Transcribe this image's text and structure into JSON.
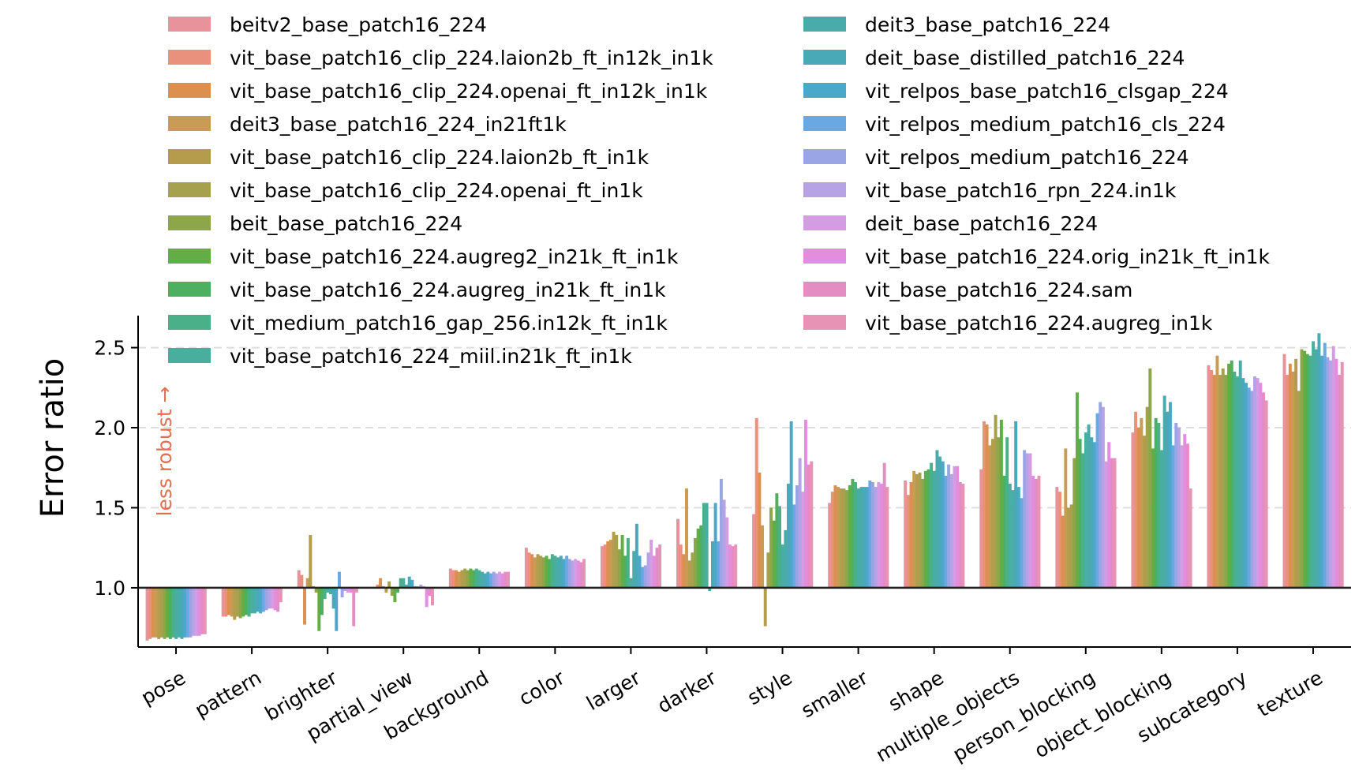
{
  "chart_data": {
    "type": "bar",
    "title": "",
    "xlabel": "",
    "ylabel": "Error ratio",
    "ylim": [
      0.63,
      2.7
    ],
    "yticks": [
      "1.0",
      "1.5",
      "2.0",
      "2.5"
    ],
    "grid": "horizontal dashed at 1.5, 2.0, 2.5",
    "reference_line": 1.0,
    "annotation": "less robust →",
    "legend_position": "top",
    "categories": [
      "pose",
      "pattern",
      "brighter",
      "partial_view",
      "background",
      "color",
      "larger",
      "darker",
      "style",
      "smaller",
      "shape",
      "multiple_objects",
      "person_blocking",
      "object_blocking",
      "subcategory",
      "texture"
    ],
    "series": [
      {
        "name": "beitv2_base_patch16_224",
        "color": "#e8939b",
        "values": [
          0.67,
          0.82,
          1.11,
          1.0,
          1.12,
          1.25,
          1.26,
          1.43,
          1.46,
          1.53,
          1.67,
          1.74,
          1.63,
          1.97,
          2.39,
          2.46
        ]
      },
      {
        "name": "vit_base_patch16_clip_224.laion2b_ft_in12k_in1k",
        "color": "#e9917d",
        "values": [
          0.68,
          0.82,
          1.08,
          1.02,
          1.11,
          1.22,
          1.27,
          1.27,
          2.06,
          1.6,
          1.58,
          2.04,
          1.6,
          2.1,
          2.36,
          2.33
        ]
      },
      {
        "name": "vit_base_patch16_clip_224.openai_ft_in12k_in1k",
        "color": "#dc8f4f",
        "values": [
          0.69,
          0.83,
          0.77,
          1.06,
          1.11,
          1.21,
          1.29,
          1.21,
          1.72,
          1.64,
          1.66,
          2.02,
          1.45,
          2.0,
          2.33,
          2.4
        ]
      },
      {
        "name": "deit3_base_patch16_224_in21ft1k",
        "color": "#c99b54",
        "values": [
          0.69,
          0.82,
          1.06,
          1.01,
          1.1,
          1.19,
          1.3,
          1.62,
          1.39,
          1.63,
          1.73,
          1.89,
          1.87,
          2.06,
          2.45,
          2.35
        ]
      },
      {
        "name": "vit_base_patch16_clip_224.laion2b_ft_in1k",
        "color": "#b49c4c",
        "values": [
          0.68,
          0.8,
          1.33,
          0.97,
          1.11,
          1.21,
          1.35,
          1.17,
          0.76,
          1.62,
          1.71,
          1.93,
          1.5,
          1.95,
          2.33,
          2.43
        ]
      },
      {
        "name": "vit_base_patch16_clip_224.openai_ft_in1k",
        "color": "#a6a14e",
        "values": [
          0.69,
          0.82,
          1.01,
          1.04,
          1.12,
          1.2,
          1.33,
          1.22,
          1.22,
          1.62,
          1.72,
          2.08,
          1.52,
          2.13,
          2.37,
          2.23
        ]
      },
      {
        "name": "beit_base_patch16_224",
        "color": "#8da649",
        "values": [
          0.68,
          0.81,
          0.97,
          0.95,
          1.11,
          1.19,
          1.24,
          1.31,
          1.5,
          1.61,
          1.68,
          1.94,
          1.81,
          2.37,
          2.33,
          2.49
        ]
      },
      {
        "name": "vit_base_patch16_224.augreg2_in21k_ft_in1k",
        "color": "#62ad44",
        "values": [
          0.69,
          0.82,
          0.73,
          0.91,
          1.12,
          1.2,
          1.33,
          1.37,
          1.42,
          1.64,
          1.73,
          2.05,
          2.22,
          1.87,
          2.4,
          2.48
        ]
      },
      {
        "name": "vit_base_patch16_224.augreg_in21k_ft_in1k",
        "color": "#4cb060",
        "values": [
          0.68,
          0.83,
          0.83,
          0.97,
          1.11,
          1.18,
          1.2,
          1.39,
          1.59,
          1.68,
          1.74,
          1.7,
          1.93,
          2.06,
          2.42,
          2.46
        ]
      },
      {
        "name": "vit_medium_patch16_gap_256.in12k_ft_in1k",
        "color": "#4ab08a",
        "values": [
          0.69,
          0.82,
          0.93,
          1.06,
          1.12,
          1.21,
          1.31,
          1.53,
          1.51,
          1.66,
          1.78,
          1.94,
          1.84,
          2.03,
          2.35,
          2.45
        ]
      },
      {
        "name": "vit_base_patch16_224_miil.in21k_ft_in1k",
        "color": "#4aae9e",
        "values": [
          0.68,
          0.84,
          0.97,
          1.06,
          1.11,
          1.2,
          1.06,
          1.53,
          1.27,
          1.62,
          1.73,
          1.65,
          1.97,
          1.86,
          2.32,
          2.54
        ]
      },
      {
        "name": "deit3_base_patch16_224",
        "color": "#4aabab",
        "values": [
          0.69,
          0.84,
          0.96,
          1.02,
          1.1,
          1.19,
          1.23,
          0.98,
          1.36,
          1.63,
          1.86,
          1.61,
          2.02,
          2.2,
          2.42,
          2.49
        ]
      },
      {
        "name": "deit_base_distilled_patch16_224",
        "color": "#49a9b6",
        "values": [
          0.68,
          0.85,
          0.87,
          1.07,
          1.09,
          1.2,
          1.4,
          1.29,
          1.65,
          1.63,
          1.82,
          2.04,
          1.94,
          2.1,
          2.31,
          2.59
        ]
      },
      {
        "name": "vit_relpos_base_patch16_clsgap_224",
        "color": "#4ca8c8",
        "values": [
          0.69,
          0.84,
          0.73,
          1.05,
          1.1,
          1.18,
          1.2,
          1.53,
          2.04,
          1.63,
          1.79,
          1.63,
          1.91,
          2.16,
          2.28,
          2.45
        ]
      },
      {
        "name": "vit_relpos_medium_patch16_cls_224",
        "color": "#6aa8e3",
        "values": [
          0.69,
          0.85,
          1.1,
          1.01,
          1.09,
          1.2,
          1.13,
          1.29,
          1.52,
          1.67,
          1.7,
          1.56,
          2.09,
          1.89,
          2.25,
          2.53
        ]
      },
      {
        "name": "vit_relpos_medium_patch16_224",
        "color": "#9aa5e6",
        "values": [
          0.69,
          0.86,
          0.94,
          1.01,
          1.1,
          1.18,
          1.14,
          1.68,
          1.64,
          1.66,
          1.77,
          1.86,
          2.16,
          2.03,
          2.23,
          2.44
        ]
      },
      {
        "name": "vit_base_patch16_rpn_224.in1k",
        "color": "#b7a2e5",
        "values": [
          0.7,
          0.87,
          0.98,
          1.02,
          1.09,
          1.17,
          1.22,
          1.55,
          1.81,
          1.63,
          1.71,
          1.84,
          2.13,
          2.0,
          2.32,
          2.42
        ]
      },
      {
        "name": "deit_base_patch16_224",
        "color": "#d49de3",
        "values": [
          0.7,
          0.87,
          0.97,
          1.01,
          1.1,
          1.18,
          1.3,
          1.44,
          1.6,
          1.66,
          1.76,
          1.84,
          1.79,
          1.89,
          2.31,
          2.51
        ]
      },
      {
        "name": "vit_base_patch16_224.orig_in21k_ft_in1k",
        "color": "#e38de0",
        "values": [
          0.7,
          0.86,
          0.97,
          0.88,
          1.09,
          1.17,
          1.2,
          1.27,
          2.05,
          1.65,
          1.76,
          1.7,
          1.91,
          1.96,
          2.28,
          2.43
        ]
      },
      {
        "name": "vit_base_patch16_224.sam",
        "color": "#e48dc3",
        "values": [
          0.71,
          0.85,
          0.76,
          0.95,
          1.1,
          1.16,
          1.25,
          1.26,
          1.77,
          1.78,
          1.66,
          1.68,
          1.81,
          1.9,
          2.22,
          2.33
        ]
      },
      {
        "name": "vit_base_patch16_224.augreg_in1k",
        "color": "#e693b5",
        "values": [
          0.71,
          0.91,
          0.97,
          0.89,
          1.1,
          1.18,
          1.27,
          1.27,
          1.79,
          1.63,
          1.65,
          1.7,
          1.81,
          1.62,
          2.17,
          2.41
        ]
      }
    ]
  }
}
